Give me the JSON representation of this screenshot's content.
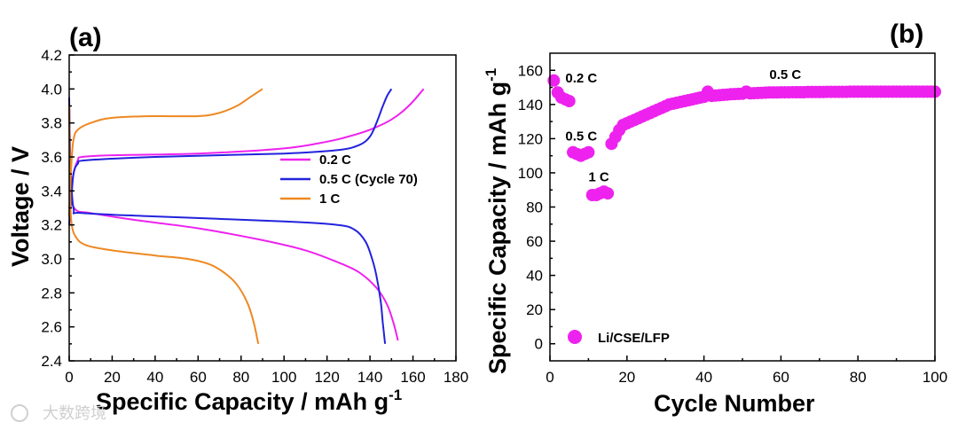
{
  "chart_data": [
    {
      "panel_label": "(a)",
      "type": "line",
      "xlabel": "Specific Capacity / mAh g",
      "xlabel_sup": "-1",
      "ylabel": "Voltage / V",
      "xlim": [
        0,
        180
      ],
      "ylim": [
        2.4,
        4.2
      ],
      "xticks": [
        0,
        20,
        40,
        60,
        80,
        100,
        120,
        140,
        160,
        180
      ],
      "yticks": [
        2.4,
        2.6,
        2.8,
        3.0,
        3.2,
        3.4,
        3.6,
        3.8,
        4.0,
        4.2
      ],
      "ytick_labels": [
        "2.4",
        "2.6",
        "2.8",
        "3.0",
        "3.2",
        "3.4",
        "3.6",
        "3.8",
        "4.0",
        "4.2"
      ],
      "legend": {
        "position": "center-right",
        "entries": [
          "0.2 C",
          "0.5 C (Cycle 70)",
          "1 C"
        ]
      },
      "series": [
        {
          "name": "0.2 C",
          "color": "#ee22ee",
          "charge": [
            [
              0,
              3.3
            ],
            [
              1,
              3.38
            ],
            [
              2,
              3.5
            ],
            [
              4,
              3.58
            ],
            [
              6,
              3.6
            ],
            [
              20,
              3.61
            ],
            [
              60,
              3.62
            ],
            [
              100,
              3.65
            ],
            [
              120,
              3.69
            ],
            [
              130,
              3.72
            ],
            [
              140,
              3.76
            ],
            [
              150,
              3.82
            ],
            [
              158,
              3.9
            ],
            [
              165,
              4.0
            ]
          ],
          "discharge": [
            [
              0,
              3.9
            ],
            [
              1,
              3.4
            ],
            [
              3,
              3.29
            ],
            [
              10,
              3.27
            ],
            [
              30,
              3.23
            ],
            [
              60,
              3.18
            ],
            [
              90,
              3.11
            ],
            [
              110,
              3.05
            ],
            [
              125,
              2.98
            ],
            [
              135,
              2.92
            ],
            [
              143,
              2.83
            ],
            [
              148,
              2.73
            ],
            [
              151,
              2.62
            ],
            [
              153,
              2.52
            ]
          ]
        },
        {
          "name": "0.5 C (Cycle 70)",
          "color": "#2222dd",
          "charge": [
            [
              0,
              3.2
            ],
            [
              1,
              3.35
            ],
            [
              2,
              3.5
            ],
            [
              4,
              3.56
            ],
            [
              8,
              3.58
            ],
            [
              40,
              3.6
            ],
            [
              100,
              3.62
            ],
            [
              125,
              3.64
            ],
            [
              135,
              3.67
            ],
            [
              140,
              3.72
            ],
            [
              143,
              3.8
            ],
            [
              146,
              3.9
            ],
            [
              148,
              3.96
            ],
            [
              150,
              4.0
            ]
          ],
          "discharge": [
            [
              0,
              3.95
            ],
            [
              0.5,
              3.6
            ],
            [
              2,
              3.3
            ],
            [
              6,
              3.27
            ],
            [
              40,
              3.25
            ],
            [
              100,
              3.22
            ],
            [
              125,
              3.2
            ],
            [
              133,
              3.17
            ],
            [
              138,
              3.1
            ],
            [
              141,
              3.0
            ],
            [
              143,
              2.9
            ],
            [
              145,
              2.75
            ],
            [
              146,
              2.62
            ],
            [
              147,
              2.5
            ]
          ]
        },
        {
          "name": "1 C",
          "color": "#ee8822",
          "charge": [
            [
              0,
              3.25
            ],
            [
              1,
              3.55
            ],
            [
              2,
              3.7
            ],
            [
              4,
              3.76
            ],
            [
              10,
              3.8
            ],
            [
              20,
              3.83
            ],
            [
              40,
              3.84
            ],
            [
              60,
              3.84
            ],
            [
              70,
              3.86
            ],
            [
              78,
              3.9
            ],
            [
              84,
              3.95
            ],
            [
              90,
              4.0
            ]
          ],
          "discharge": [
            [
              0,
              3.9
            ],
            [
              0.5,
              3.4
            ],
            [
              1,
              3.22
            ],
            [
              3,
              3.13
            ],
            [
              8,
              3.08
            ],
            [
              20,
              3.05
            ],
            [
              40,
              3.02
            ],
            [
              55,
              3.0
            ],
            [
              65,
              2.97
            ],
            [
              72,
              2.92
            ],
            [
              78,
              2.85
            ],
            [
              83,
              2.74
            ],
            [
              86,
              2.62
            ],
            [
              88,
              2.5
            ]
          ]
        }
      ]
    },
    {
      "panel_label": "(b)",
      "type": "scatter",
      "xlabel": "Cycle Number",
      "ylabel": "Specific Capacity / mAh g",
      "ylabel_sup": "-1",
      "xlim": [
        0,
        100
      ],
      "ylim": [
        -10,
        170
      ],
      "xticks": [
        0,
        20,
        40,
        60,
        80,
        100
      ],
      "yticks": [
        0,
        20,
        40,
        60,
        80,
        100,
        120,
        140,
        160
      ],
      "legend": {
        "position": "bottom-left",
        "entries": [
          "Li/CSE/LFP"
        ]
      },
      "marker_color": "#ee22ee",
      "annotations": [
        {
          "text": "0.2 C",
          "x": 4,
          "y": 153
        },
        {
          "text": "0.5 C",
          "x": 4,
          "y": 119
        },
        {
          "text": "1 C",
          "x": 10,
          "y": 95
        },
        {
          "text": "0.5 C",
          "x": 57,
          "y": 155
        }
      ],
      "series": [
        {
          "name": "Li/CSE/LFP",
          "x": [
            1,
            2,
            3,
            4,
            5,
            6,
            7,
            8,
            9,
            10,
            11,
            12,
            13,
            14,
            15,
            16,
            17,
            18,
            19,
            20,
            21,
            22,
            23,
            24,
            25,
            26,
            27,
            28,
            29,
            30,
            31,
            32,
            33,
            34,
            35,
            36,
            37,
            38,
            39,
            40,
            41,
            42,
            43,
            44,
            45,
            46,
            47,
            48,
            49,
            50,
            51,
            52,
            53,
            54,
            55,
            56,
            57,
            58,
            59,
            60,
            61,
            62,
            63,
            64,
            65,
            66,
            67,
            68,
            69,
            70,
            71,
            72,
            73,
            74,
            75,
            76,
            77,
            78,
            79,
            80,
            81,
            82,
            83,
            84,
            85,
            86,
            87,
            88,
            89,
            90,
            91,
            92,
            93,
            94,
            95,
            96,
            97,
            98,
            99,
            100
          ],
          "y": [
            154,
            147,
            144,
            143,
            142,
            112,
            111,
            110,
            111,
            112,
            87,
            87,
            88,
            89,
            88,
            117,
            121,
            125,
            128,
            129,
            130,
            131,
            132,
            133,
            134,
            135,
            136,
            137,
            138,
            139,
            140,
            140.5,
            141,
            141.5,
            142,
            142.5,
            143,
            143.5,
            144,
            144.5,
            147.5,
            145,
            145.2,
            145.4,
            145.6,
            145.8,
            146,
            146.1,
            146.2,
            146.3,
            147.5,
            146.5,
            146.6,
            146.7,
            146.8,
            146.9,
            147,
            147,
            147,
            147.1,
            147.1,
            147.1,
            147.2,
            147.2,
            147.2,
            147.2,
            147.3,
            147.3,
            147.3,
            147.3,
            147.3,
            147.4,
            147.4,
            147.4,
            147.4,
            147.4,
            147.4,
            147.5,
            147.5,
            147.5,
            147.5,
            147.5,
            147.5,
            147.5,
            147.5,
            147.5,
            147.5,
            147.5,
            147.5,
            147.5,
            147.5,
            147.5,
            147.5,
            147.5,
            147.5,
            147.5,
            147.5,
            147.5,
            147.5,
            147.5
          ]
        }
      ]
    }
  ],
  "watermark": "大数跨境"
}
